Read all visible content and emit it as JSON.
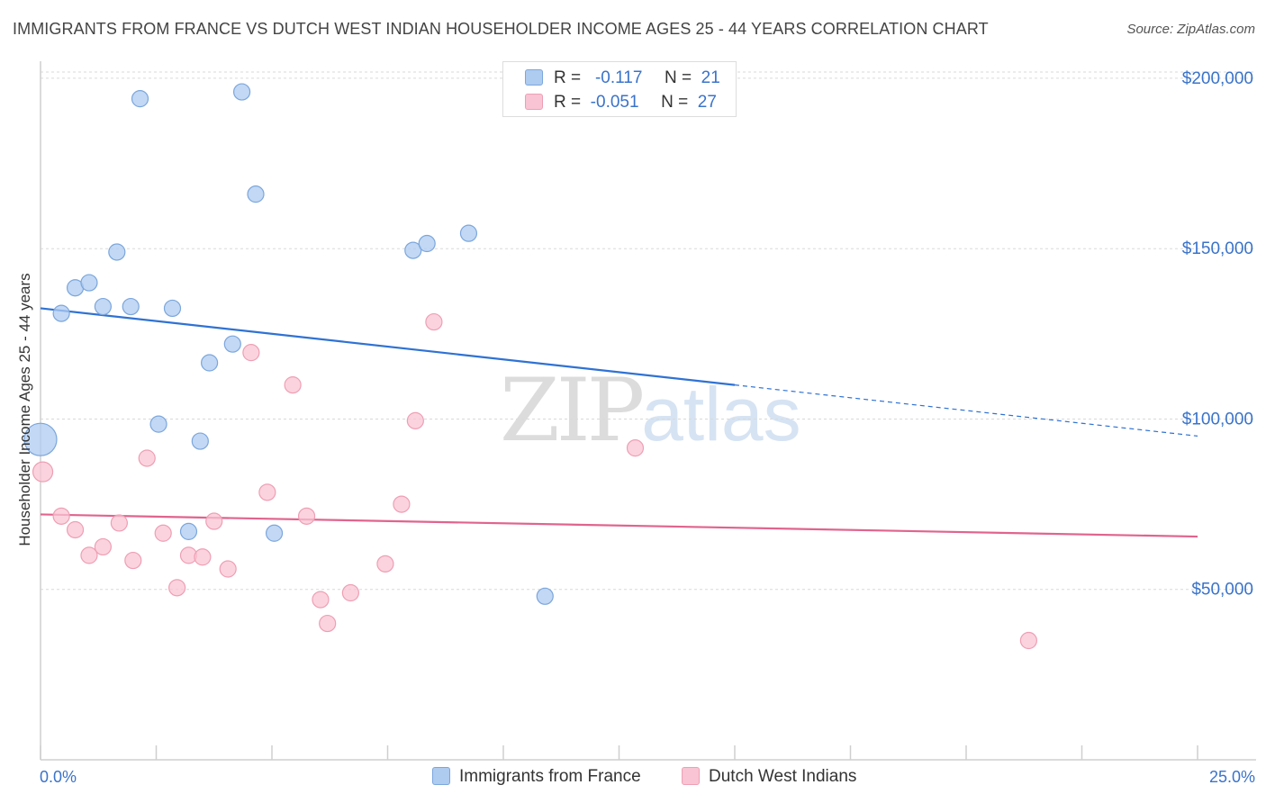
{
  "title": "IMMIGRANTS FROM FRANCE VS DUTCH WEST INDIAN HOUSEHOLDER INCOME AGES 25 - 44 YEARS CORRELATION CHART",
  "source": "Source: ZipAtlas.com",
  "watermark": {
    "zip": "ZIP",
    "atlas": "atlas"
  },
  "legend_top": [
    {
      "r_label": "R =",
      "r_value": "-0.117",
      "n_label": "N =",
      "n_value": "21"
    },
    {
      "r_label": "R =",
      "r_value": "-0.051",
      "n_label": "N =",
      "n_value": "27"
    }
  ],
  "chart_data": {
    "type": "scatter",
    "title": "IMMIGRANTS FROM FRANCE VS DUTCH WEST INDIAN HOUSEHOLDER INCOME AGES 25 - 44 YEARS CORRELATION CHART",
    "xlabel": "",
    "ylabel": "Householder Income Ages 25 - 44 years",
    "xlim": [
      0,
      25
    ],
    "ylim": [
      0,
      205000
    ],
    "x_tick_labels": [
      "0.0%",
      "25.0%"
    ],
    "y_ticks": [
      50000,
      100000,
      150000,
      200000
    ],
    "y_tick_labels": [
      "$50,000",
      "$100,000",
      "$150,000",
      "$200,000"
    ],
    "grid": true,
    "legend_position": "bottom",
    "series": [
      {
        "name": "Immigrants from France",
        "color": "#aecbf0",
        "stroke": "#7ba6dc",
        "line_color": "#2f72d3",
        "trend": {
          "x": [
            0,
            15
          ],
          "y": [
            132500,
            110000
          ],
          "dashed_to": [
            25,
            95000
          ]
        },
        "points": [
          {
            "x": 2.15,
            "y": 194000,
            "s": 9
          },
          {
            "x": 4.35,
            "y": 196000,
            "s": 9
          },
          {
            "x": 4.65,
            "y": 166000,
            "s": 9
          },
          {
            "x": 1.65,
            "y": 149000,
            "s": 9
          },
          {
            "x": 0.75,
            "y": 138500,
            "s": 9
          },
          {
            "x": 1.05,
            "y": 140000,
            "s": 9
          },
          {
            "x": 0.45,
            "y": 131000,
            "s": 9
          },
          {
            "x": 1.35,
            "y": 133000,
            "s": 9
          },
          {
            "x": 1.95,
            "y": 133000,
            "s": 9
          },
          {
            "x": 2.85,
            "y": 132500,
            "s": 9
          },
          {
            "x": 4.15,
            "y": 122000,
            "s": 9
          },
          {
            "x": 3.65,
            "y": 116500,
            "s": 9
          },
          {
            "x": 2.55,
            "y": 98500,
            "s": 9
          },
          {
            "x": 3.45,
            "y": 93500,
            "s": 9
          },
          {
            "x": 0.0,
            "y": 94000,
            "s": 18
          },
          {
            "x": 3.2,
            "y": 67000,
            "s": 9
          },
          {
            "x": 5.05,
            "y": 66500,
            "s": 9
          },
          {
            "x": 8.05,
            "y": 149500,
            "s": 9
          },
          {
            "x": 8.35,
            "y": 151500,
            "s": 9
          },
          {
            "x": 9.25,
            "y": 154500,
            "s": 9
          },
          {
            "x": 10.9,
            "y": 48000,
            "s": 9
          }
        ]
      },
      {
        "name": "Dutch West Indians",
        "color": "#f9c4d3",
        "stroke": "#ee9fb4",
        "line_color": "#e0648e",
        "trend": {
          "x": [
            0,
            25
          ],
          "y": [
            72000,
            65500
          ]
        },
        "points": [
          {
            "x": 0.05,
            "y": 84500,
            "s": 11
          },
          {
            "x": 0.45,
            "y": 71500,
            "s": 9
          },
          {
            "x": 0.75,
            "y": 67500,
            "s": 9
          },
          {
            "x": 1.05,
            "y": 60000,
            "s": 9
          },
          {
            "x": 1.35,
            "y": 62500,
            "s": 9
          },
          {
            "x": 1.7,
            "y": 69500,
            "s": 9
          },
          {
            "x": 2.0,
            "y": 58500,
            "s": 9
          },
          {
            "x": 2.3,
            "y": 88500,
            "s": 9
          },
          {
            "x": 2.65,
            "y": 66500,
            "s": 9
          },
          {
            "x": 2.95,
            "y": 50500,
            "s": 9
          },
          {
            "x": 3.2,
            "y": 60000,
            "s": 9
          },
          {
            "x": 3.5,
            "y": 59500,
            "s": 9
          },
          {
            "x": 3.75,
            "y": 70000,
            "s": 9
          },
          {
            "x": 4.05,
            "y": 56000,
            "s": 9
          },
          {
            "x": 4.55,
            "y": 119500,
            "s": 9
          },
          {
            "x": 4.9,
            "y": 78500,
            "s": 9
          },
          {
            "x": 5.45,
            "y": 110000,
            "s": 9
          },
          {
            "x": 5.75,
            "y": 71500,
            "s": 9
          },
          {
            "x": 6.05,
            "y": 47000,
            "s": 9
          },
          {
            "x": 6.2,
            "y": 40000,
            "s": 9
          },
          {
            "x": 6.7,
            "y": 49000,
            "s": 9
          },
          {
            "x": 7.45,
            "y": 57500,
            "s": 9
          },
          {
            "x": 7.8,
            "y": 75000,
            "s": 9
          },
          {
            "x": 8.1,
            "y": 99500,
            "s": 9
          },
          {
            "x": 8.5,
            "y": 128500,
            "s": 9
          },
          {
            "x": 12.85,
            "y": 91500,
            "s": 9
          },
          {
            "x": 21.35,
            "y": 35000,
            "s": 9
          }
        ]
      }
    ]
  }
}
